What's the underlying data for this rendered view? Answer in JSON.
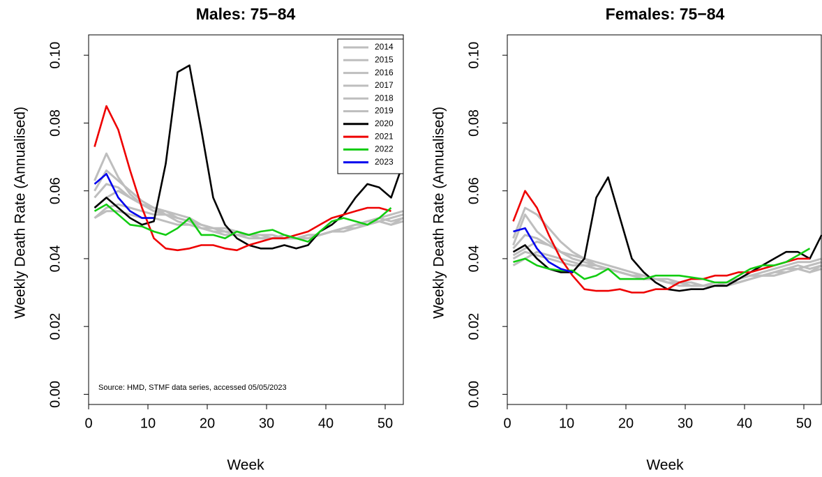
{
  "chart_data": [
    {
      "type": "line",
      "title": "Males: 75−84",
      "xlabel": "Week",
      "ylabel": "Weekly Death Rate (Annualised)",
      "annotation": "Source: HMD, STMF data series, accessed 05/05/2023",
      "legend": "topright",
      "xlim": [
        0,
        53
      ],
      "ylim": [
        -0.003,
        0.106
      ],
      "xticks": [
        0,
        10,
        20,
        30,
        40,
        50
      ],
      "yticks": [
        {
          "value": 0,
          "label": "0.00"
        },
        {
          "value": 0.02,
          "label": "0.02"
        },
        {
          "value": 0.04,
          "label": "0.04"
        },
        {
          "value": 0.06,
          "label": "0.06"
        },
        {
          "value": 0.08,
          "label": "0.08"
        },
        {
          "value": 0.1,
          "label": "0.10"
        }
      ],
      "x": [
        1,
        3,
        5,
        7,
        9,
        11,
        13,
        15,
        17,
        19,
        21,
        23,
        25,
        27,
        29,
        31,
        33,
        35,
        37,
        39,
        41,
        43,
        45,
        47,
        49,
        51,
        53
      ],
      "series": [
        {
          "name": "2014",
          "color": "#bebebe",
          "values": [
            0.063,
            0.071,
            0.064,
            0.059,
            0.056,
            0.055,
            0.054,
            0.052,
            0.051,
            0.05,
            0.049,
            0.048,
            0.047,
            0.047,
            0.047,
            0.046,
            0.047,
            0.046,
            0.046,
            0.047,
            0.048,
            0.049,
            0.05,
            0.051,
            0.052,
            0.051,
            0.052
          ]
        },
        {
          "name": "2015",
          "color": "#bebebe",
          "values": [
            0.052,
            0.055,
            0.056,
            0.055,
            0.054,
            0.053,
            0.053,
            0.052,
            0.051,
            0.05,
            0.049,
            0.048,
            0.048,
            0.047,
            0.046,
            0.046,
            0.046,
            0.046,
            0.047,
            0.047,
            0.048,
            0.049,
            0.05,
            0.051,
            0.051,
            0.05,
            0.052
          ]
        },
        {
          "name": "2016",
          "color": "#bebebe",
          "values": [
            0.058,
            0.062,
            0.061,
            0.058,
            0.056,
            0.054,
            0.054,
            0.053,
            0.052,
            0.05,
            0.049,
            0.049,
            0.048,
            0.047,
            0.047,
            0.047,
            0.046,
            0.046,
            0.046,
            0.047,
            0.048,
            0.049,
            0.05,
            0.05,
            0.051,
            0.052,
            0.053
          ]
        },
        {
          "name": "2017",
          "color": "#bebebe",
          "values": [
            0.06,
            0.066,
            0.063,
            0.06,
            0.057,
            0.055,
            0.053,
            0.051,
            0.05,
            0.049,
            0.048,
            0.048,
            0.047,
            0.046,
            0.046,
            0.046,
            0.046,
            0.046,
            0.046,
            0.047,
            0.048,
            0.049,
            0.049,
            0.05,
            0.051,
            0.05,
            0.051
          ]
        },
        {
          "name": "2018",
          "color": "#bebebe",
          "values": [
            0.055,
            0.058,
            0.06,
            0.058,
            0.056,
            0.054,
            0.053,
            0.052,
            0.051,
            0.049,
            0.048,
            0.047,
            0.047,
            0.047,
            0.046,
            0.046,
            0.046,
            0.046,
            0.047,
            0.047,
            0.048,
            0.049,
            0.05,
            0.051,
            0.052,
            0.053,
            0.054
          ]
        },
        {
          "name": "2019",
          "color": "#bebebe",
          "values": [
            0.052,
            0.054,
            0.054,
            0.053,
            0.052,
            0.052,
            0.051,
            0.05,
            0.05,
            0.049,
            0.049,
            0.048,
            0.047,
            0.047,
            0.046,
            0.046,
            0.046,
            0.046,
            0.046,
            0.047,
            0.048,
            0.048,
            0.049,
            0.05,
            0.051,
            0.052,
            0.053
          ]
        },
        {
          "name": "2020",
          "color": "#000000",
          "values": [
            0.055,
            0.058,
            0.055,
            0.052,
            0.05,
            0.051,
            0.068,
            0.095,
            0.097,
            0.078,
            0.058,
            0.05,
            0.046,
            0.044,
            0.043,
            0.043,
            0.044,
            0.043,
            0.044,
            0.048,
            0.05,
            0.053,
            0.058,
            0.062,
            0.061,
            0.058,
            0.068
          ]
        },
        {
          "name": "2021",
          "color": "#ee0000",
          "values": [
            0.073,
            0.085,
            0.078,
            0.066,
            0.055,
            0.046,
            0.043,
            0.0425,
            0.043,
            0.044,
            0.044,
            0.043,
            0.0425,
            0.044,
            0.045,
            0.046,
            0.046,
            0.047,
            0.048,
            0.05,
            0.052,
            0.053,
            0.054,
            0.055,
            0.055,
            0.054,
            null
          ]
        },
        {
          "name": "2022",
          "color": "#11cc11",
          "values": [
            0.054,
            0.056,
            0.053,
            0.05,
            0.0495,
            0.048,
            0.047,
            0.049,
            0.052,
            0.047,
            0.047,
            0.046,
            0.048,
            0.047,
            0.048,
            0.0485,
            0.047,
            0.046,
            0.045,
            0.048,
            0.051,
            0.052,
            0.051,
            0.05,
            0.052,
            0.055,
            null
          ]
        },
        {
          "name": "2023",
          "color": "#0000ee",
          "values": [
            0.062,
            0.065,
            0.058,
            0.054,
            0.052,
            0.052,
            null,
            null,
            null,
            null,
            null,
            null,
            null,
            null,
            null,
            null,
            null,
            null,
            null,
            null,
            null,
            null,
            null,
            null,
            null,
            null,
            null
          ]
        }
      ]
    },
    {
      "type": "line",
      "title": "Females: 75−84",
      "xlabel": "Week",
      "ylabel": "Weekly Death Rate (Annualised)",
      "xlim": [
        0,
        53
      ],
      "ylim": [
        -0.003,
        0.106
      ],
      "xticks": [
        0,
        10,
        20,
        30,
        40,
        50
      ],
      "yticks": [
        {
          "value": 0,
          "label": "0.00"
        },
        {
          "value": 0.02,
          "label": "0.02"
        },
        {
          "value": 0.04,
          "label": "0.04"
        },
        {
          "value": 0.06,
          "label": "0.06"
        },
        {
          "value": 0.08,
          "label": "0.08"
        },
        {
          "value": 0.1,
          "label": "0.10"
        }
      ],
      "x": [
        1,
        3,
        5,
        7,
        9,
        11,
        13,
        15,
        17,
        19,
        21,
        23,
        25,
        27,
        29,
        31,
        33,
        35,
        37,
        39,
        41,
        43,
        45,
        47,
        49,
        51,
        53
      ],
      "series": [
        {
          "color": "#bebebe",
          "values": [
            0.044,
            0.053,
            0.048,
            0.045,
            0.042,
            0.041,
            0.04,
            0.039,
            0.038,
            0.037,
            0.036,
            0.035,
            0.034,
            0.033,
            0.033,
            0.032,
            0.032,
            0.032,
            0.033,
            0.034,
            0.035,
            0.035,
            0.036,
            0.037,
            0.038,
            0.037,
            0.038
          ]
        },
        {
          "color": "#bebebe",
          "values": [
            0.038,
            0.04,
            0.042,
            0.041,
            0.04,
            0.039,
            0.038,
            0.038,
            0.037,
            0.036,
            0.035,
            0.034,
            0.034,
            0.033,
            0.033,
            0.032,
            0.032,
            0.032,
            0.033,
            0.033,
            0.034,
            0.035,
            0.036,
            0.036,
            0.037,
            0.036,
            0.037
          ]
        },
        {
          "color": "#bebebe",
          "values": [
            0.043,
            0.047,
            0.046,
            0.044,
            0.042,
            0.04,
            0.039,
            0.038,
            0.037,
            0.036,
            0.035,
            0.034,
            0.034,
            0.033,
            0.033,
            0.033,
            0.032,
            0.032,
            0.033,
            0.034,
            0.035,
            0.035,
            0.036,
            0.037,
            0.037,
            0.038,
            0.039
          ]
        },
        {
          "color": "#bebebe",
          "values": [
            0.046,
            0.055,
            0.053,
            0.049,
            0.045,
            0.042,
            0.04,
            0.038,
            0.037,
            0.036,
            0.035,
            0.034,
            0.034,
            0.033,
            0.032,
            0.032,
            0.032,
            0.032,
            0.032,
            0.033,
            0.034,
            0.035,
            0.035,
            0.036,
            0.037,
            0.036,
            0.038
          ]
        },
        {
          "color": "#bebebe",
          "values": [
            0.041,
            0.043,
            0.045,
            0.044,
            0.042,
            0.04,
            0.039,
            0.038,
            0.037,
            0.036,
            0.035,
            0.035,
            0.034,
            0.033,
            0.033,
            0.032,
            0.032,
            0.033,
            0.033,
            0.034,
            0.035,
            0.036,
            0.037,
            0.038,
            0.039,
            0.039,
            0.04
          ]
        },
        {
          "color": "#bebebe",
          "values": [
            0.04,
            0.042,
            0.041,
            0.04,
            0.039,
            0.038,
            0.038,
            0.037,
            0.037,
            0.036,
            0.035,
            0.035,
            0.034,
            0.034,
            0.033,
            0.033,
            0.032,
            0.032,
            0.032,
            0.033,
            0.034,
            0.035,
            0.035,
            0.036,
            0.037,
            0.038,
            0.039
          ]
        },
        {
          "color": "#000000",
          "values": [
            0.042,
            0.044,
            0.04,
            0.037,
            0.036,
            0.036,
            0.04,
            0.058,
            0.064,
            0.052,
            0.04,
            0.036,
            0.033,
            0.031,
            0.0305,
            0.031,
            0.031,
            0.032,
            0.032,
            0.034,
            0.036,
            0.038,
            0.04,
            0.042,
            0.042,
            0.04,
            0.047
          ]
        },
        {
          "color": "#ee0000",
          "values": [
            0.051,
            0.06,
            0.055,
            0.047,
            0.04,
            0.035,
            0.031,
            0.0305,
            0.0305,
            0.031,
            0.03,
            0.03,
            0.031,
            0.031,
            0.033,
            0.034,
            0.034,
            0.035,
            0.035,
            0.036,
            0.036,
            0.037,
            0.038,
            0.039,
            0.04,
            0.04,
            null
          ]
        },
        {
          "color": "#11cc11",
          "values": [
            0.039,
            0.04,
            0.038,
            0.037,
            0.0365,
            0.0365,
            0.034,
            0.035,
            0.037,
            0.034,
            0.034,
            0.034,
            0.035,
            0.035,
            0.035,
            0.0345,
            0.034,
            0.033,
            0.033,
            0.035,
            0.037,
            0.038,
            0.038,
            0.039,
            0.041,
            0.043,
            null
          ]
        },
        {
          "color": "#0000ee",
          "values": [
            0.048,
            0.049,
            0.043,
            0.039,
            0.037,
            0.036,
            null,
            null,
            null,
            null,
            null,
            null,
            null,
            null,
            null,
            null,
            null,
            null,
            null,
            null,
            null,
            null,
            null,
            null,
            null,
            null,
            null
          ]
        }
      ]
    }
  ]
}
